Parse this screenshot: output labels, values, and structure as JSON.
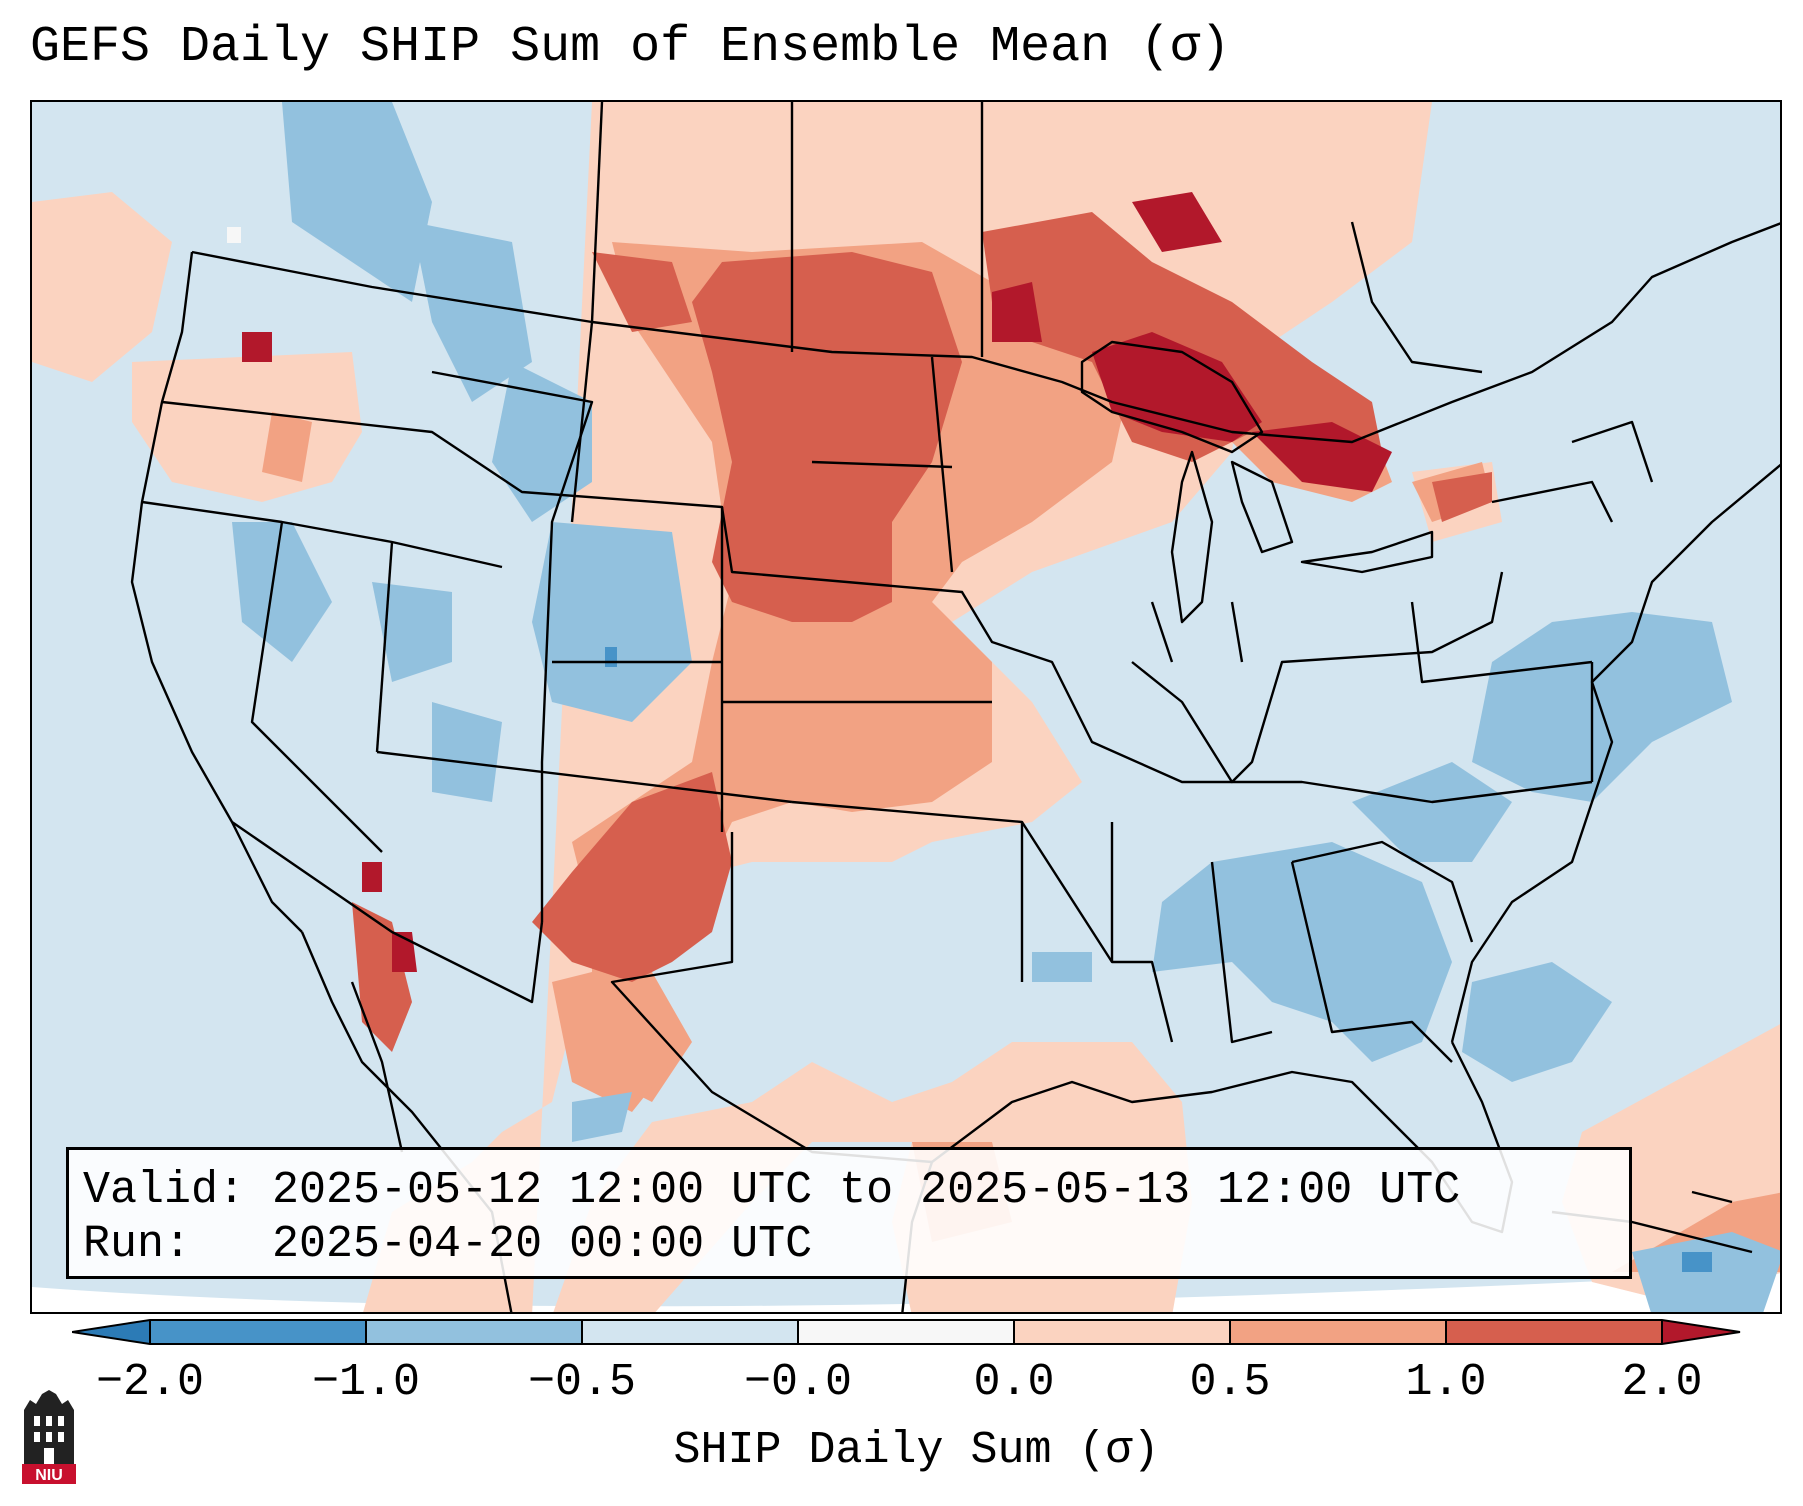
{
  "title": "GEFS Daily SHIP Sum of Ensemble Mean (σ)",
  "info": {
    "valid_line": "Valid: 2025-05-12 12:00 UTC to 2025-05-13 12:00 UTC",
    "run_line": "Run:   2025-04-20 00:00 UTC"
  },
  "colorbar": {
    "label": "SHIP Daily Sum (σ)",
    "ticks": [
      "−2.0",
      "−1.0",
      "−0.5",
      "−0.0",
      "0.0",
      "0.5",
      "1.0",
      "2.0"
    ],
    "colors": {
      "extend_low": "#2c7bb6",
      "bin_-2_-1": "#4793c8",
      "bin_-1_-0.5": "#92c1de",
      "bin_-0.5_0": "#d3e5f0",
      "bin_0_0": "#f7f7f7",
      "bin_0_0.5": "#fbd3c0",
      "bin_0.5_1": "#f2a283",
      "bin_1_2": "#d65f4e",
      "extend_high": "#b2182b"
    }
  },
  "logo": {
    "text": "NIU",
    "icon": "niu-tower-logo"
  }
}
